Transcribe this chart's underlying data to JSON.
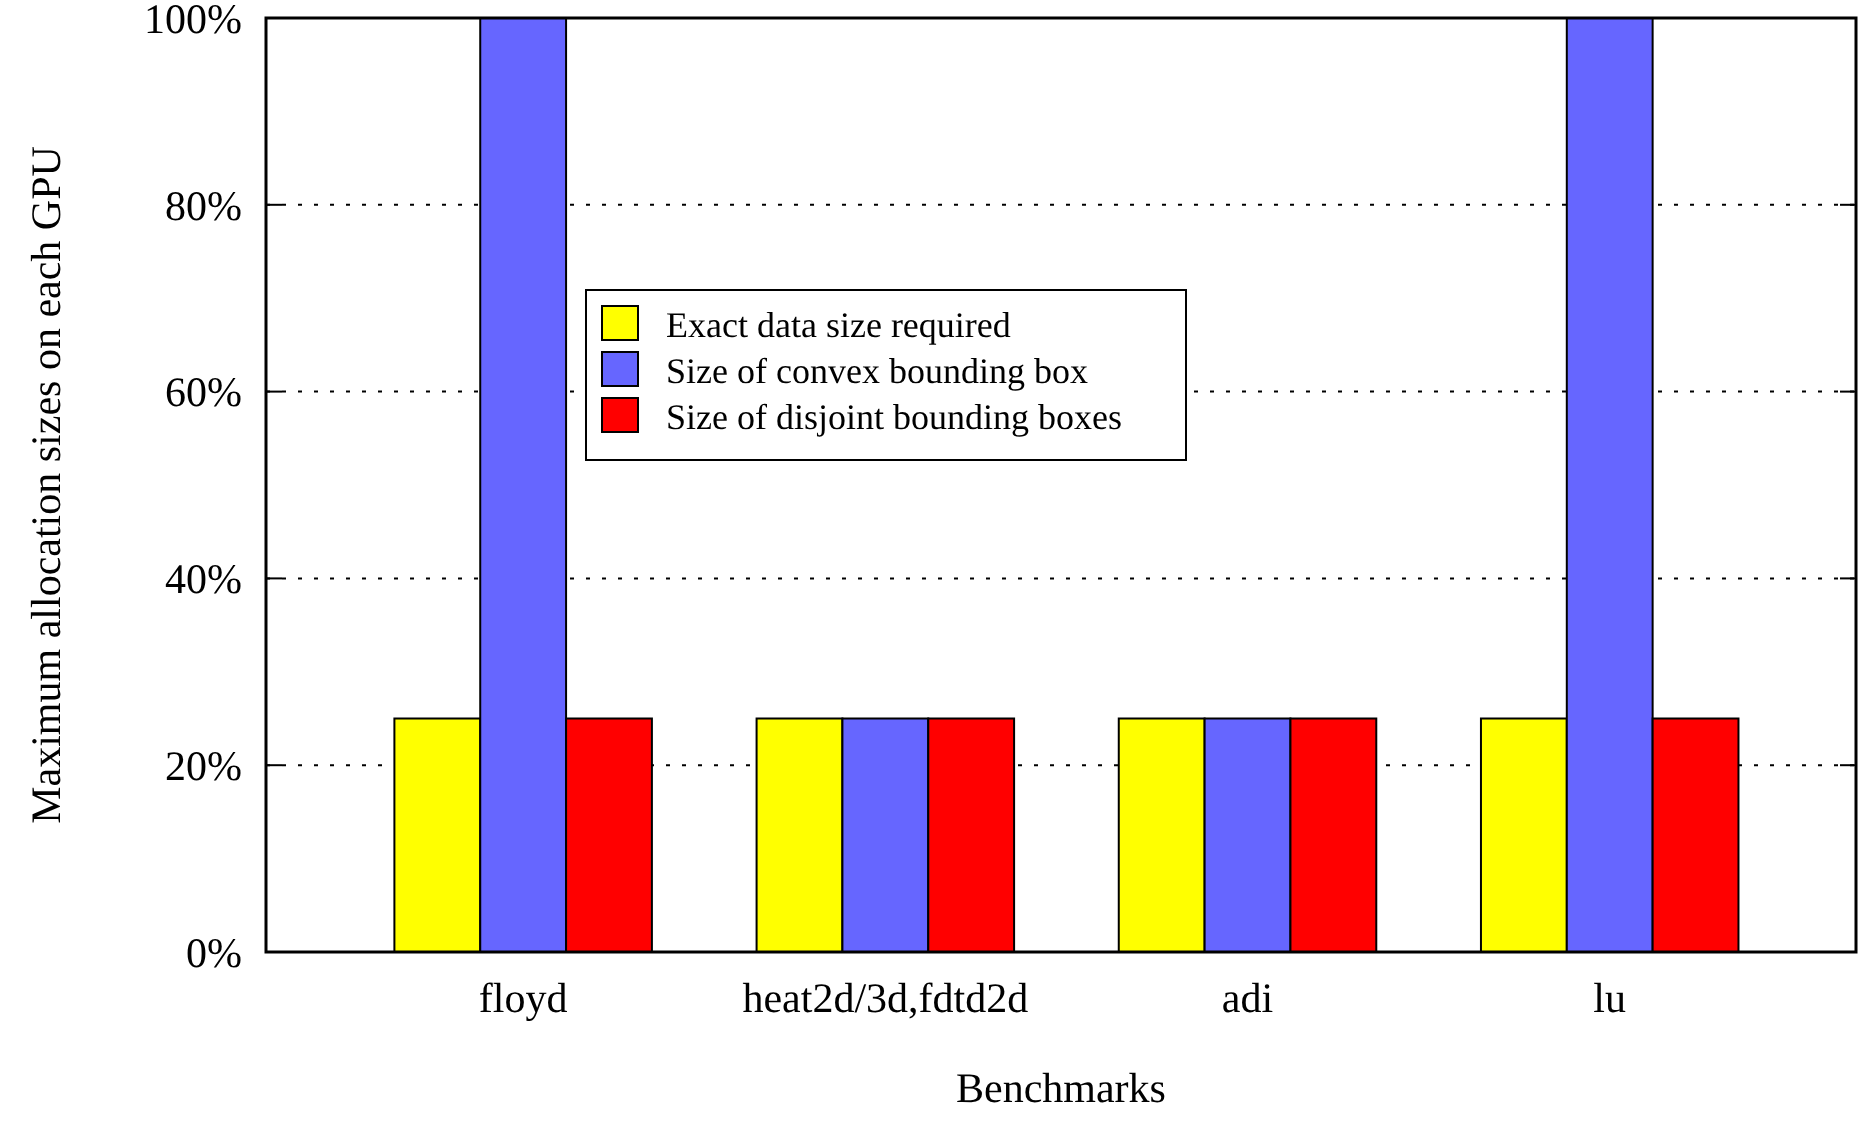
{
  "chart_data": {
    "type": "bar",
    "xlabel": "Benchmarks",
    "ylabel": "Maximum allocation sizes on each GPU",
    "categories": [
      "floyd",
      "heat2d/3d,fdtd2d",
      "adi",
      "lu"
    ],
    "series": [
      {
        "name": "Exact data size required",
        "color": "#ffff00",
        "values": [
          25,
          25,
          25,
          25
        ]
      },
      {
        "name": "Size of convex bounding box",
        "color": "#6666ff",
        "values": [
          100,
          25,
          25,
          100
        ]
      },
      {
        "name": "Size of disjoint bounding boxes",
        "color": "#ff0000",
        "values": [
          25,
          25,
          25,
          25
        ]
      }
    ],
    "ylim": [
      0,
      100
    ],
    "yticks": [
      {
        "value": 0,
        "label": "0%"
      },
      {
        "value": 20,
        "label": "20%"
      },
      {
        "value": 40,
        "label": "40%"
      },
      {
        "value": 60,
        "label": "60%"
      },
      {
        "value": 80,
        "label": "80%"
      },
      {
        "value": 100,
        "label": "100%"
      }
    ],
    "grid": "y",
    "legend": "center"
  }
}
